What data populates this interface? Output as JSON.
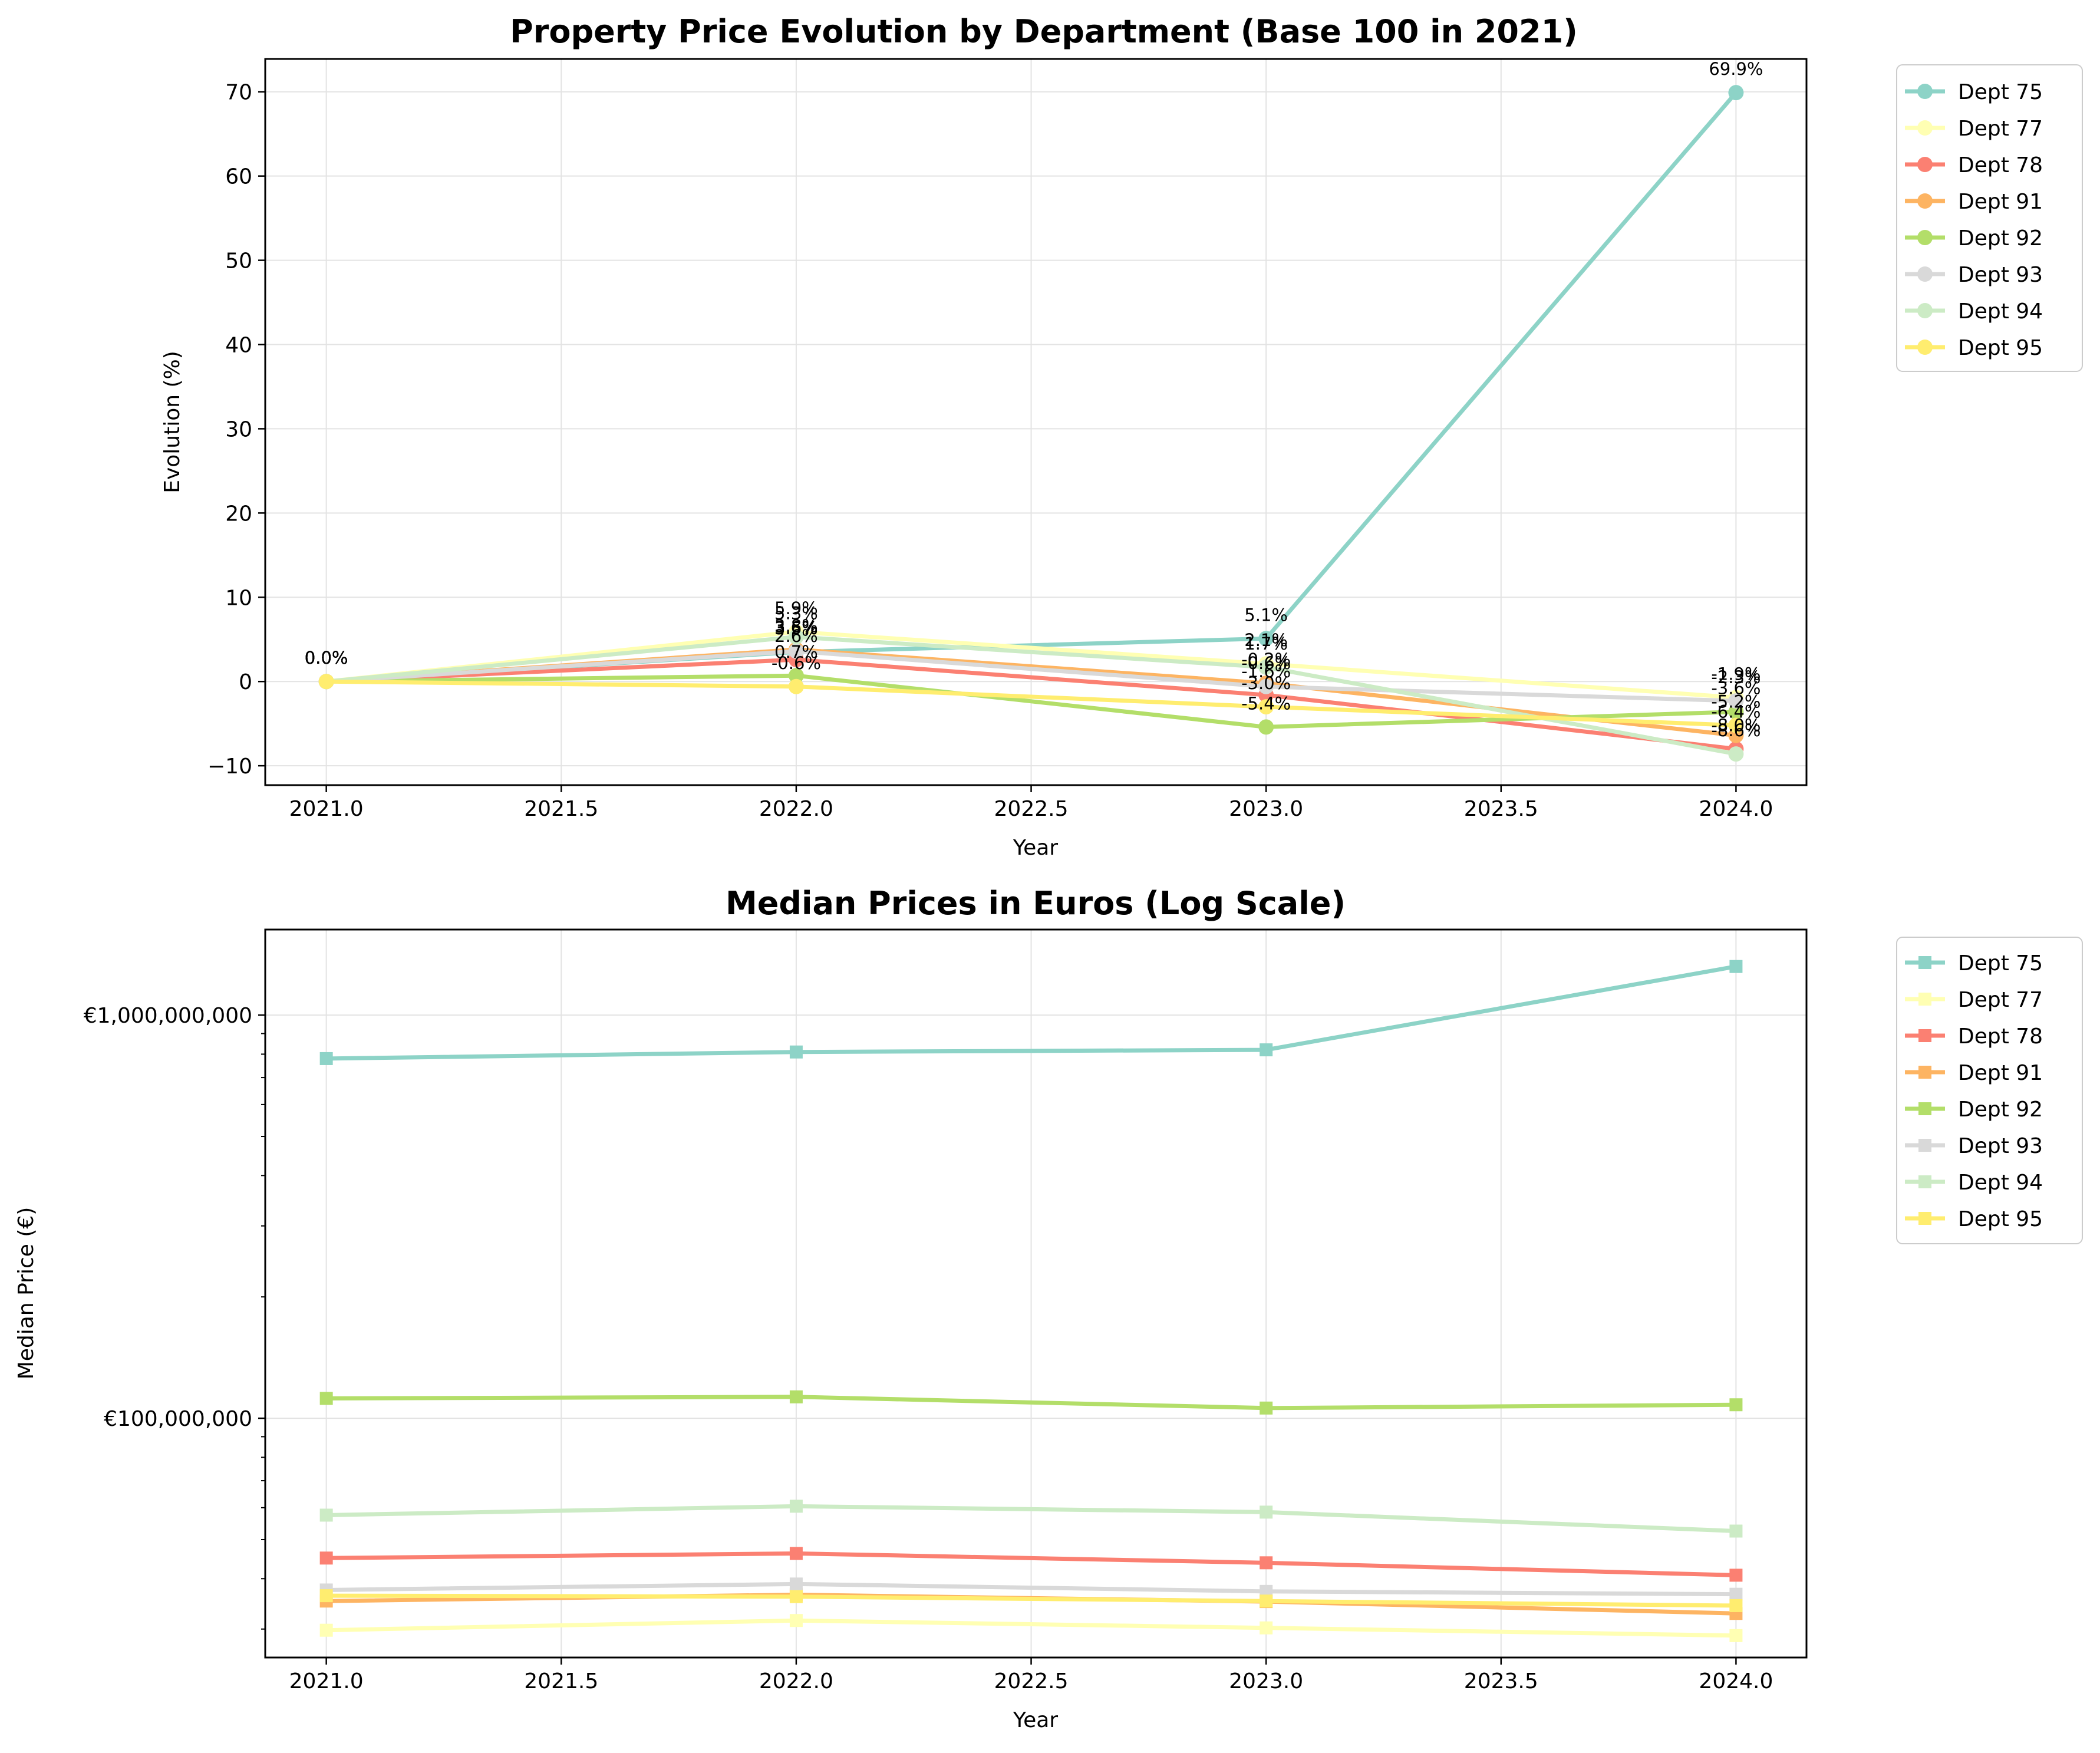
{
  "chart_data": [
    {
      "type": "line",
      "title": "Property Price Evolution by Department (Base 100 in 2021)",
      "xlabel": "Year",
      "ylabel": "Evolution (%)",
      "x": [
        2021.0,
        2022.0,
        2023.0,
        2024.0
      ],
      "xlim": [
        2020.87,
        2024.15
      ],
      "ylim": [
        -12.3,
        73.9
      ],
      "xticks": [
        2021.0,
        2021.5,
        2022.0,
        2022.5,
        2023.0,
        2023.5,
        2024.0
      ],
      "xtick_labels": [
        "2021.0",
        "2021.5",
        "2022.0",
        "2022.5",
        "2023.0",
        "2023.5",
        "2024.0"
      ],
      "yticks": [
        -10,
        0,
        10,
        20,
        30,
        40,
        50,
        60,
        70
      ],
      "ytick_labels": [
        "−10",
        "0",
        "10",
        "20",
        "30",
        "40",
        "50",
        "60",
        "70"
      ],
      "grid": true,
      "legend_position": "outside-top-right",
      "marker": "circle",
      "series": [
        {
          "name": "Dept 75",
          "color": "#8dd3c7",
          "values": [
            0,
            3.5,
            5.1,
            69.9
          ],
          "labels": [
            "0.0%",
            "3.5%",
            "5.1%",
            "69.9%"
          ]
        },
        {
          "name": "Dept 77",
          "color": "#ffffb3",
          "values": [
            0,
            5.9,
            2.1,
            -1.9
          ],
          "labels": [
            "0.0%",
            "5.9%",
            "2.1%",
            "-1.9%"
          ]
        },
        {
          "name": "Dept 78",
          "color": "#fb8072",
          "values": [
            0,
            2.6,
            -1.6,
            -8.0
          ],
          "labels": [
            "0.0%",
            "2.6%",
            "-1.6%",
            "-8.0%"
          ]
        },
        {
          "name": "Dept 91",
          "color": "#fdb462",
          "values": [
            0,
            3.8,
            -0.2,
            -6.4
          ],
          "labels": [
            "0.0%",
            "3.8%",
            "-0.2%",
            "-6.4%"
          ]
        },
        {
          "name": "Dept 92",
          "color": "#b3de69",
          "values": [
            0,
            0.7,
            -5.4,
            -3.6
          ],
          "labels": [
            "0.0%",
            "0.7%",
            "-5.4%",
            "-3.6%"
          ]
        },
        {
          "name": "Dept 93",
          "color": "#d9d9d9",
          "values": [
            0,
            3.6,
            -0.6,
            -2.3
          ],
          "labels": [
            "0.0%",
            "3.6%",
            "-0.6%",
            "-2.3%"
          ]
        },
        {
          "name": "Dept 94",
          "color": "#ccebc5",
          "values": [
            0,
            5.3,
            1.7,
            -8.6
          ],
          "labels": [
            "0.0%",
            "5.3%",
            "1.7%",
            "-8.6%"
          ]
        },
        {
          "name": "Dept 95",
          "color": "#ffed6f",
          "values": [
            0,
            -0.6,
            -3.0,
            -5.2
          ],
          "labels": [
            "0.0%",
            "-0.6%",
            "-3.0%",
            "-5.2%"
          ]
        }
      ]
    },
    {
      "type": "line",
      "title": "Median Prices in Euros (Log Scale)",
      "xlabel": "Year",
      "ylabel": "Median Price (€)",
      "yscale": "log",
      "x": [
        2021.0,
        2022.0,
        2023.0,
        2024.0
      ],
      "xlim": [
        2020.87,
        2024.15
      ],
      "ylim": [
        25500000,
        1630000000
      ],
      "xticks": [
        2021.0,
        2021.5,
        2022.0,
        2022.5,
        2023.0,
        2023.5,
        2024.0
      ],
      "xtick_labels": [
        "2021.0",
        "2021.5",
        "2022.0",
        "2022.5",
        "2023.0",
        "2023.5",
        "2024.0"
      ],
      "yticks": [
        100000000,
        1000000000
      ],
      "ytick_labels": [
        "€100,000,000",
        "€1,000,000,000"
      ],
      "minor_yticks": [
        30000000,
        40000000,
        50000000,
        60000000,
        70000000,
        80000000,
        90000000,
        200000000,
        300000000,
        400000000,
        500000000,
        600000000,
        700000000,
        800000000,
        900000000
      ],
      "grid": true,
      "legend_position": "outside-top-right",
      "marker": "square",
      "series": [
        {
          "name": "Dept 75",
          "color": "#8dd3c7",
          "values": [
            780000000,
            810000000,
            820000000,
            1320000000
          ]
        },
        {
          "name": "Dept 77",
          "color": "#ffffb3",
          "values": [
            29800000,
            31500000,
            30200000,
            28900000
          ]
        },
        {
          "name": "Dept 78",
          "color": "#fb8072",
          "values": [
            45000000,
            46200000,
            43800000,
            40800000
          ]
        },
        {
          "name": "Dept 91",
          "color": "#fdb462",
          "values": [
            35200000,
            36500000,
            35100000,
            32800000
          ]
        },
        {
          "name": "Dept 92",
          "color": "#b3de69",
          "values": [
            112000000,
            113000000,
            106000000,
            108000000
          ]
        },
        {
          "name": "Dept 93",
          "color": "#d9d9d9",
          "values": [
            37500000,
            38800000,
            37200000,
            36600000
          ]
        },
        {
          "name": "Dept 94",
          "color": "#ccebc5",
          "values": [
            57500000,
            60500000,
            58500000,
            52500000
          ]
        },
        {
          "name": "Dept 95",
          "color": "#ffed6f",
          "values": [
            36300000,
            36100000,
            35200000,
            34300000
          ]
        }
      ]
    }
  ]
}
